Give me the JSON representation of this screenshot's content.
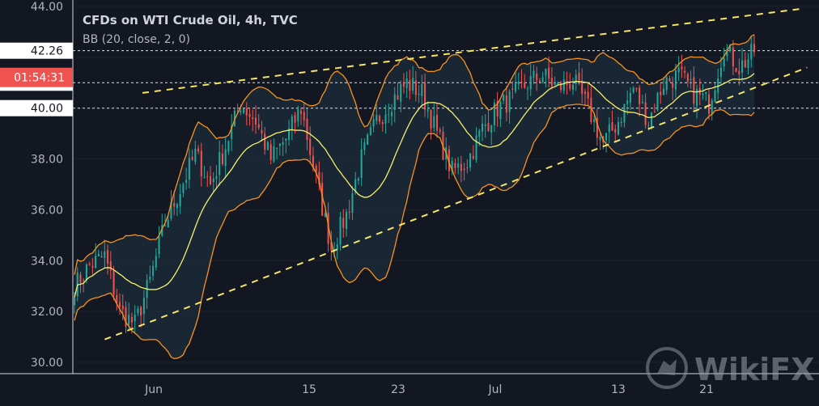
{
  "header": {
    "title": "CFDs on WTI Crude Oil, 4h, TVC",
    "indicator": "BB (20, close, 2, 0)"
  },
  "price_axis": {
    "labels": [
      "44.00",
      "42.26",
      "41.00",
      "40.00",
      "38.00",
      "36.00",
      "34.00",
      "32.00",
      "30.00"
    ],
    "countdown": "01:54:31"
  },
  "time_axis": {
    "labels": [
      "Jun",
      "15",
      "23",
      "Jul",
      "13",
      "21"
    ]
  },
  "watermark": {
    "text": "WikiFX"
  },
  "colors": {
    "background": "#131722",
    "bull": "#26a69a",
    "bear": "#ef5350",
    "bb_band": "#f7931a",
    "bb_basis": "#f6f06a",
    "trendline": "#f5e663",
    "countdown_badge": "#ef5350"
  },
  "chart_data": {
    "type": "candlestick",
    "title": "CFDs on WTI Crude Oil, 4h, TVC",
    "indicator": "BB (20, close, 2, 0)",
    "x": [
      "Jun",
      "15",
      "23",
      "Jul",
      "13",
      "21"
    ],
    "ylim": [
      30.0,
      44.0
    ],
    "y_ticks": [
      30.0,
      32.0,
      34.0,
      36.0,
      38.0,
      40.0,
      41.0,
      42.26,
      44.0
    ],
    "last_price": 42.26,
    "horizontal_levels": [
      42.26,
      41.0,
      40.0
    ],
    "price_path": [
      33.0,
      33.8,
      34.2,
      32.0,
      31.5,
      33.2,
      35.5,
      36.8,
      38.2,
      37.0,
      38.5,
      40.2,
      39.5,
      38.0,
      38.8,
      40.0,
      37.2,
      34.5,
      35.8,
      38.0,
      39.5,
      40.3,
      41.0,
      40.6,
      39.0,
      37.5,
      37.9,
      39.2,
      40.0,
      40.4,
      41.0,
      41.3,
      40.8,
      41.1,
      40.0,
      38.6,
      39.5,
      40.8,
      39.5,
      41.0,
      41.3,
      40.6,
      40.2,
      42.4,
      41.6,
      42.2
    ],
    "trend_channel": {
      "upper": [
        [
          4.5,
          40.6
        ],
        [
          48.0,
          43.9
        ]
      ],
      "lower": [
        [
          2.0,
          30.9
        ],
        [
          48.5,
          41.6
        ]
      ]
    }
  }
}
